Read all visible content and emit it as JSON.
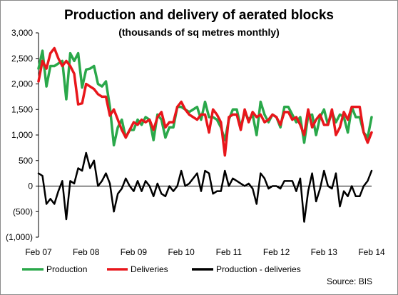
{
  "chart_data": {
    "type": "line",
    "title": "Production and delivery of aerated blocks",
    "subtitle": "(thousands of sq metres monthly)",
    "xlabel": "",
    "ylabel": "",
    "ylim": [
      -1000,
      3000
    ],
    "yticks": [
      -1000,
      -500,
      0,
      500,
      1000,
      1500,
      2000,
      2500,
      3000
    ],
    "ytick_labels": [
      "(1,000)",
      "(500)",
      "0",
      "500",
      "1,000",
      "1,500",
      "2,000",
      "2,500",
      "3,000"
    ],
    "x_ticks": [
      {
        "label": "Feb 07",
        "index": 0
      },
      {
        "label": "Feb 08",
        "index": 12
      },
      {
        "label": "Feb 09",
        "index": 24
      },
      {
        "label": "Feb 10",
        "index": 36
      },
      {
        "label": "Feb 11",
        "index": 48
      },
      {
        "label": "Feb 12",
        "index": 60
      },
      {
        "label": "Feb 13",
        "index": 72
      },
      {
        "label": "Feb 14",
        "index": 84
      }
    ],
    "grid": false,
    "legend_position": "bottom",
    "series": [
      {
        "name": "Production",
        "color": "#2aa84a",
        "values": [
          2300,
          2650,
          1950,
          2350,
          2350,
          2400,
          2450,
          1700,
          2600,
          2450,
          2600,
          1930,
          2280,
          2300,
          2350,
          2000,
          1950,
          2050,
          1550,
          800,
          1150,
          1300,
          950,
          1100,
          1100,
          1300,
          1200,
          1350,
          1300,
          900,
          1400,
          1300,
          950,
          1150,
          1150,
          1550,
          1550,
          1500,
          1450,
          1500,
          1550,
          1300,
          1650,
          1350,
          1350,
          1300,
          1150,
          900,
          1300,
          1500,
          1500,
          1150,
          1450,
          1300,
          1400,
          1000,
          1650,
          1400,
          1250,
          1400,
          1350,
          1150,
          1550,
          1550,
          1400,
          1250,
          1350,
          850,
          1380,
          1400,
          1000,
          1350,
          1500,
          1200,
          1450,
          1250,
          1400,
          1350,
          1050,
          1550,
          1350,
          1350,
          1050,
          950,
          1350
        ]
      },
      {
        "name": "Deliveries",
        "color": "#e8161b",
        "values": [
          2050,
          2450,
          2300,
          2600,
          2700,
          2500,
          2350,
          2450,
          2350,
          2200,
          1600,
          1620,
          2000,
          1950,
          1900,
          1800,
          1750,
          1750,
          1380,
          1500,
          1300,
          1100,
          950,
          1100,
          1250,
          1200,
          1300,
          1250,
          1300,
          1100,
          1350,
          1450,
          1150,
          1250,
          1250,
          1550,
          1650,
          1500,
          1400,
          1350,
          1300,
          1400,
          1400,
          1050,
          1500,
          1400,
          1250,
          600,
          1350,
          1400,
          1400,
          1100,
          1500,
          1250,
          1450,
          1350,
          1400,
          1250,
          1300,
          1400,
          1350,
          1200,
          1450,
          1450,
          1300,
          1350,
          1200,
          1000,
          1500,
          1150,
          1300,
          1400,
          1200,
          1200,
          1500,
          1000,
          1150,
          1450,
          1300,
          1550,
          1550,
          1550,
          1050,
          850,
          1050
        ]
      },
      {
        "name": "Production - deliveries",
        "color": "#000000",
        "values": [
          250,
          200,
          -350,
          -250,
          -350,
          -100,
          100,
          -650,
          100,
          50,
          350,
          300,
          650,
          350,
          500,
          0,
          100,
          250,
          50,
          -500,
          -150,
          -50,
          150,
          0,
          -100,
          100,
          -100,
          100,
          0,
          -200,
          50,
          -150,
          -200,
          0,
          -100,
          0,
          300,
          0,
          50,
          150,
          250,
          -100,
          300,
          250,
          -150,
          -100,
          -100,
          300,
          0,
          150,
          100,
          50,
          0,
          50,
          -50,
          -350,
          250,
          150,
          -50,
          0,
          0,
          -50,
          100,
          100,
          100,
          -100,
          150,
          -700,
          -100,
          250,
          -300,
          -50,
          300,
          0,
          -50,
          250,
          -400,
          -100,
          -200,
          0,
          -200,
          -200,
          0,
          100,
          300
        ]
      }
    ],
    "source": "Source:  BIS"
  }
}
